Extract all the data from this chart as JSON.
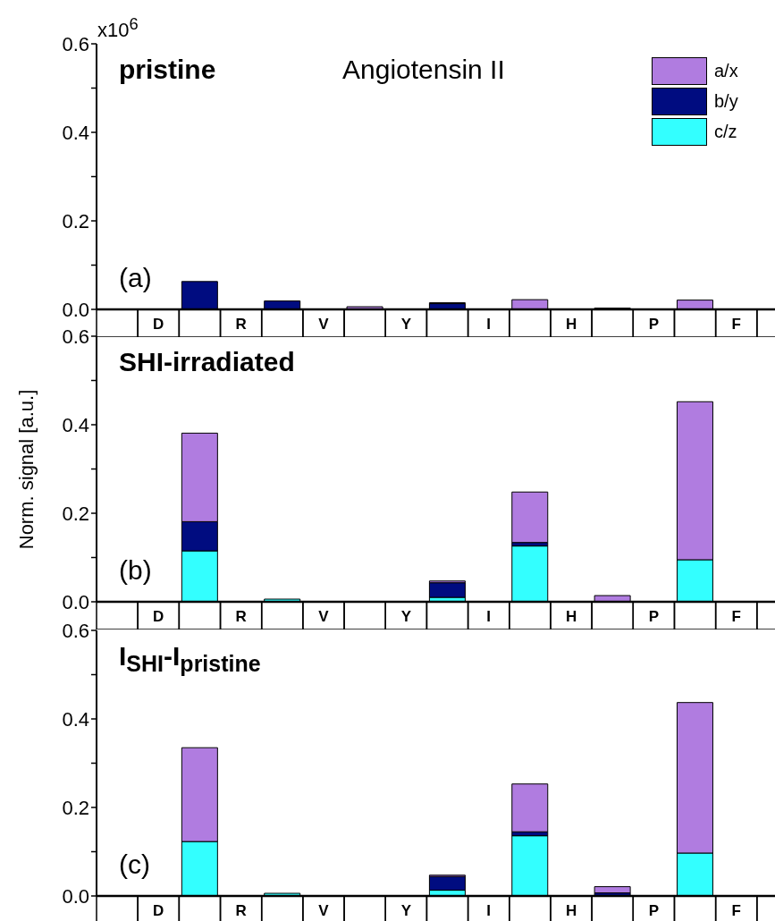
{
  "chart_data": [
    {
      "type": "bar",
      "title": "pristine",
      "annotations": [
        "x10$^{6}$",
        "Angiotensin II",
        "(a)"
      ],
      "stacked": true,
      "legend": "top right",
      "categories": [
        null,
        "D",
        null,
        "R",
        null,
        "V",
        null,
        "Y",
        null,
        "I",
        null,
        "H",
        null,
        "P",
        null,
        "F",
        null
      ],
      "ylim": [
        0,
        0.6
      ],
      "yticks": [
        {
          "value": 0,
          "label": "0.0"
        },
        {
          "value": 0.1,
          "label": null
        },
        {
          "value": 0.2,
          "label": "0.2"
        },
        {
          "value": 0.3,
          "label": null
        },
        {
          "value": 0.4,
          "label": "0.4"
        },
        {
          "value": 0.5,
          "label": null
        },
        {
          "value": 0.6,
          "label": "0.6"
        }
      ],
      "series": [
        {
          "name": "c/z",
          "color": "#33ffff",
          "values": [
            null,
            null,
            null,
            null,
            null,
            null,
            null,
            null,
            null,
            null,
            null,
            null,
            null,
            null,
            null,
            null,
            null
          ]
        },
        {
          "name": "b/y",
          "color": "#000c80",
          "values": [
            null,
            null,
            0.063,
            null,
            0.019,
            null,
            null,
            null,
            0.013,
            null,
            null,
            null,
            0.003,
            null,
            null,
            null,
            null
          ]
        },
        {
          "name": "a/x",
          "color": "#b07ce0",
          "values": [
            null,
            null,
            null,
            null,
            null,
            null,
            0.006,
            null,
            0.002,
            null,
            0.022,
            null,
            null,
            null,
            0.021,
            null,
            null
          ]
        }
      ]
    },
    {
      "type": "bar",
      "title": "SHI-irradiated",
      "ylabel": "Norm. signal [a.u.]",
      "annotations": [
        "(b)"
      ],
      "stacked": true,
      "categories": [
        null,
        "D",
        null,
        "R",
        null,
        "V",
        null,
        "Y",
        null,
        "I",
        null,
        "H",
        null,
        "P",
        null,
        "F",
        null
      ],
      "ylim": [
        0,
        0.6
      ],
      "yticks": [
        {
          "value": 0,
          "label": "0.0"
        },
        {
          "value": 0.1,
          "label": null
        },
        {
          "value": 0.2,
          "label": "0.2"
        },
        {
          "value": 0.3,
          "label": null
        },
        {
          "value": 0.4,
          "label": "0.4"
        },
        {
          "value": 0.5,
          "label": null
        },
        {
          "value": 0.6,
          "label": "0.6"
        }
      ],
      "series": [
        {
          "color": "#33ffff",
          "values": [
            null,
            null,
            0.115,
            null,
            0.006,
            null,
            null,
            null,
            0.01,
            null,
            0.126,
            null,
            null,
            null,
            0.095,
            null,
            null
          ]
        },
        {
          "color": "#000c80",
          "values": [
            null,
            null,
            0.066,
            null,
            null,
            null,
            null,
            null,
            0.033,
            null,
            0.008,
            null,
            null,
            null,
            null,
            null,
            null
          ]
        },
        {
          "color": "#b07ce0",
          "values": [
            null,
            null,
            0.2,
            null,
            null,
            null,
            null,
            null,
            0.004,
            null,
            0.114,
            null,
            0.014,
            null,
            0.357,
            null,
            null
          ]
        }
      ]
    },
    {
      "type": "bar",
      "title": "I$_{SHI}$-I$_{pristine}$",
      "annotations": [
        "(c)"
      ],
      "stacked": true,
      "categories": [
        null,
        "D",
        null,
        "R",
        null,
        "V",
        null,
        "Y",
        null,
        "I",
        null,
        "H",
        null,
        "P",
        null,
        "F",
        null
      ],
      "ylim": [
        0,
        0.6
      ],
      "yticks": [
        {
          "value": 0,
          "label": "0.0"
        },
        {
          "value": 0.1,
          "label": null
        },
        {
          "value": 0.2,
          "label": "0.2"
        },
        {
          "value": 0.3,
          "label": null
        },
        {
          "value": 0.4,
          "label": "0.4"
        },
        {
          "value": 0.5,
          "label": null
        },
        {
          "value": 0.6,
          "label": "0.6"
        }
      ],
      "series": [
        {
          "color": "#33ffff",
          "values": [
            null,
            null,
            0.123,
            null,
            0.006,
            null,
            null,
            null,
            0.013,
            null,
            0.136,
            null,
            null,
            null,
            0.097,
            null,
            null
          ]
        },
        {
          "color": "#000c80",
          "values": [
            null,
            null,
            null,
            null,
            null,
            null,
            null,
            null,
            0.031,
            null,
            0.009,
            null,
            0.007,
            null,
            null,
            null,
            null
          ]
        },
        {
          "color": "#b07ce0",
          "values": [
            null,
            null,
            0.212,
            null,
            null,
            null,
            null,
            null,
            0.003,
            null,
            0.108,
            null,
            0.014,
            null,
            0.34,
            null,
            null
          ]
        }
      ]
    }
  ]
}
